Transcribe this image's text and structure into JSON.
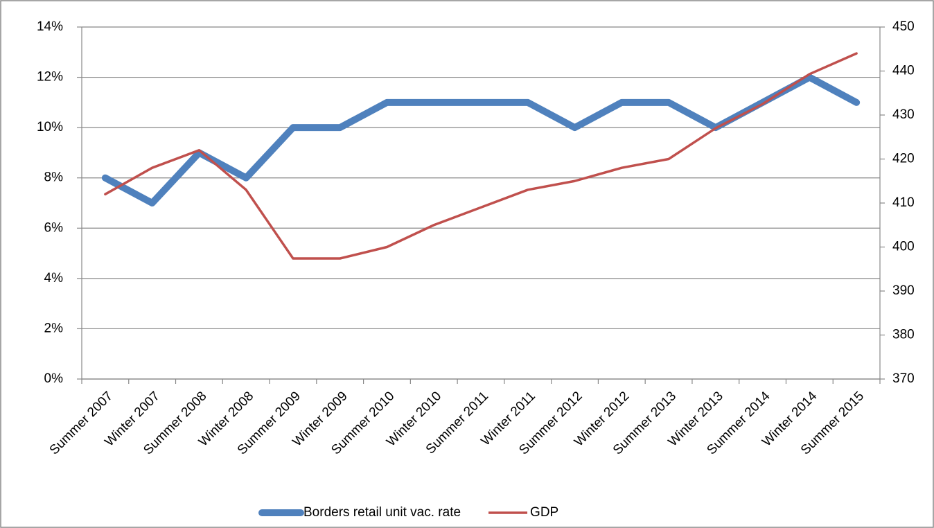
{
  "chart_data": {
    "type": "line",
    "categories": [
      "Summer 2007",
      "Winter 2007",
      "Summer 2008",
      "Winter 2008",
      "Summer 2009",
      "Winter 2009",
      "Summer 2010",
      "Winter 2010",
      "Summer 2011",
      "Winter 2011",
      "Summer 2012",
      "Winter 2012",
      "Summer 2013",
      "Winter 2013",
      "Summer 2014",
      "Winter 2014",
      "Summer 2015"
    ],
    "series": [
      {
        "name": "Borders retail unit vac. rate",
        "color": "#4f81bd",
        "values": [
          8,
          7,
          9,
          8,
          10,
          10,
          11,
          11,
          11,
          11,
          10,
          11,
          11,
          10,
          11,
          12,
          11
        ]
      },
      {
        "name": "GDP",
        "color": "#c0504d",
        "axis": "y2",
        "values": [
          412,
          418,
          422,
          413,
          397.4,
          397.4,
          400,
          405,
          409,
          413,
          415,
          418,
          420,
          427,
          432.5,
          439.3,
          444
        ]
      }
    ],
    "ylim": [
      0,
      14
    ],
    "yticks": [
      {
        "value": 0,
        "label": "0%"
      },
      {
        "value": 2,
        "label": "2%"
      },
      {
        "value": 4,
        "label": "4%"
      },
      {
        "value": 6,
        "label": "6%"
      },
      {
        "value": 8,
        "label": "8%"
      },
      {
        "value": 10,
        "label": "10%"
      },
      {
        "value": 12,
        "label": "12%"
      },
      {
        "value": 14,
        "label": "14%"
      }
    ],
    "y2lim": [
      370,
      450
    ],
    "y2ticks": [
      370,
      380,
      390,
      400,
      410,
      420,
      430,
      440,
      450
    ],
    "grid": true,
    "legend": "bottom"
  }
}
